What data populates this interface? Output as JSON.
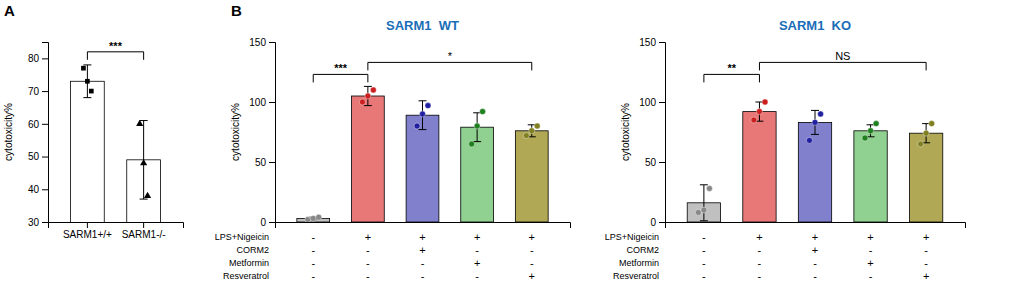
{
  "chart_data": [
    {
      "type": "bar",
      "panel_label": "A",
      "categories": [
        "SARM1+/+",
        "SARM1-/-"
      ],
      "values": [
        73,
        49
      ],
      "errors": [
        5,
        12
      ],
      "color": "#ffffff",
      "points": [
        [
          77,
          73,
          70
        ],
        [
          60,
          48,
          38
        ]
      ],
      "ylabel": "cytotoxicity%",
      "ylim": [
        30,
        85
      ],
      "yticks": [
        30,
        40,
        50,
        60,
        70,
        80
      ],
      "annotations": [
        {
          "text": "***",
          "x1": 0,
          "x2": 1,
          "y": 82
        }
      ]
    },
    {
      "type": "bar",
      "panel_label": "B",
      "title": "SARM1  WT",
      "title_color": "#1a6eb8",
      "categories": [
        null,
        null,
        null,
        null,
        null
      ],
      "tick_labels": "y",
      "values": [
        3,
        105,
        89,
        79,
        76
      ],
      "errors": [
        1,
        8,
        12,
        12,
        5
      ],
      "colors": [
        "#c0c0c0",
        "#e87878",
        "#8080cc",
        "#90d090",
        "#b0a855"
      ],
      "points": [
        [
          2,
          3,
          4
        ],
        [
          100,
          105,
          110
        ],
        [
          80,
          90,
          97
        ],
        [
          65,
          80,
          92
        ],
        [
          72,
          76,
          80
        ]
      ],
      "point_colors": [
        "#888888",
        "#cc2020",
        "#2020a0",
        "#208020",
        "#808020"
      ],
      "ylabel": "cytotoxicity%",
      "ylim": [
        0,
        150
      ],
      "yticks": [
        0,
        50,
        100,
        150
      ],
      "annotations": [
        {
          "text": "***",
          "x1": 0,
          "x2": 1,
          "y": 123
        },
        {
          "text": "*",
          "x1": 1,
          "x2": 4,
          "y": 133
        }
      ],
      "rows": [
        {
          "label": "LPS+Nigeicin",
          "signs": [
            "-",
            "+",
            "+",
            "+",
            "+"
          ]
        },
        {
          "label": "CORM2",
          "signs": [
            "-",
            "-",
            "+",
            "-",
            "-"
          ]
        },
        {
          "label": "Metformin",
          "signs": [
            "-",
            "-",
            "-",
            "+",
            "-"
          ]
        },
        {
          "label": "Resveratrol",
          "signs": [
            "-",
            "-",
            "-",
            "-",
            "+"
          ]
        }
      ]
    },
    {
      "type": "bar",
      "title": "SARM1  KO",
      "title_color": "#1a6eb8",
      "categories": [
        null,
        null,
        null,
        null,
        null
      ],
      "tick_labels": "y",
      "values": [
        16,
        92,
        83,
        76,
        74
      ],
      "errors": [
        15,
        8,
        10,
        5,
        8
      ],
      "colors": [
        "#c0c0c0",
        "#e87878",
        "#8080cc",
        "#90d090",
        "#b0a855"
      ],
      "points": [
        [
          8,
          10,
          28
        ],
        [
          85,
          92,
          100
        ],
        [
          68,
          83,
          90
        ],
        [
          70,
          76,
          82
        ],
        [
          65,
          74,
          82
        ]
      ],
      "point_colors": [
        "#888888",
        "#cc2020",
        "#2020a0",
        "#208020",
        "#808020"
      ],
      "ylabel": "cytotoxicity%",
      "ylim": [
        0,
        150
      ],
      "yticks": [
        0,
        50,
        100,
        150
      ],
      "annotations": [
        {
          "text": "**",
          "x1": 0,
          "x2": 1,
          "y": 123
        },
        {
          "text": "NS",
          "x1": 1,
          "x2": 4,
          "y": 133
        }
      ],
      "rows": [
        {
          "label": "LPS+Nigeicin",
          "signs": [
            "-",
            "+",
            "+",
            "+",
            "+"
          ]
        },
        {
          "label": "CORM2",
          "signs": [
            "-",
            "-",
            "+",
            "-",
            "-"
          ]
        },
        {
          "label": "Metformin",
          "signs": [
            "-",
            "-",
            "-",
            "+",
            "-"
          ]
        },
        {
          "label": "Resveratrol",
          "signs": [
            "-",
            "-",
            "-",
            "-",
            "+"
          ]
        }
      ]
    }
  ]
}
